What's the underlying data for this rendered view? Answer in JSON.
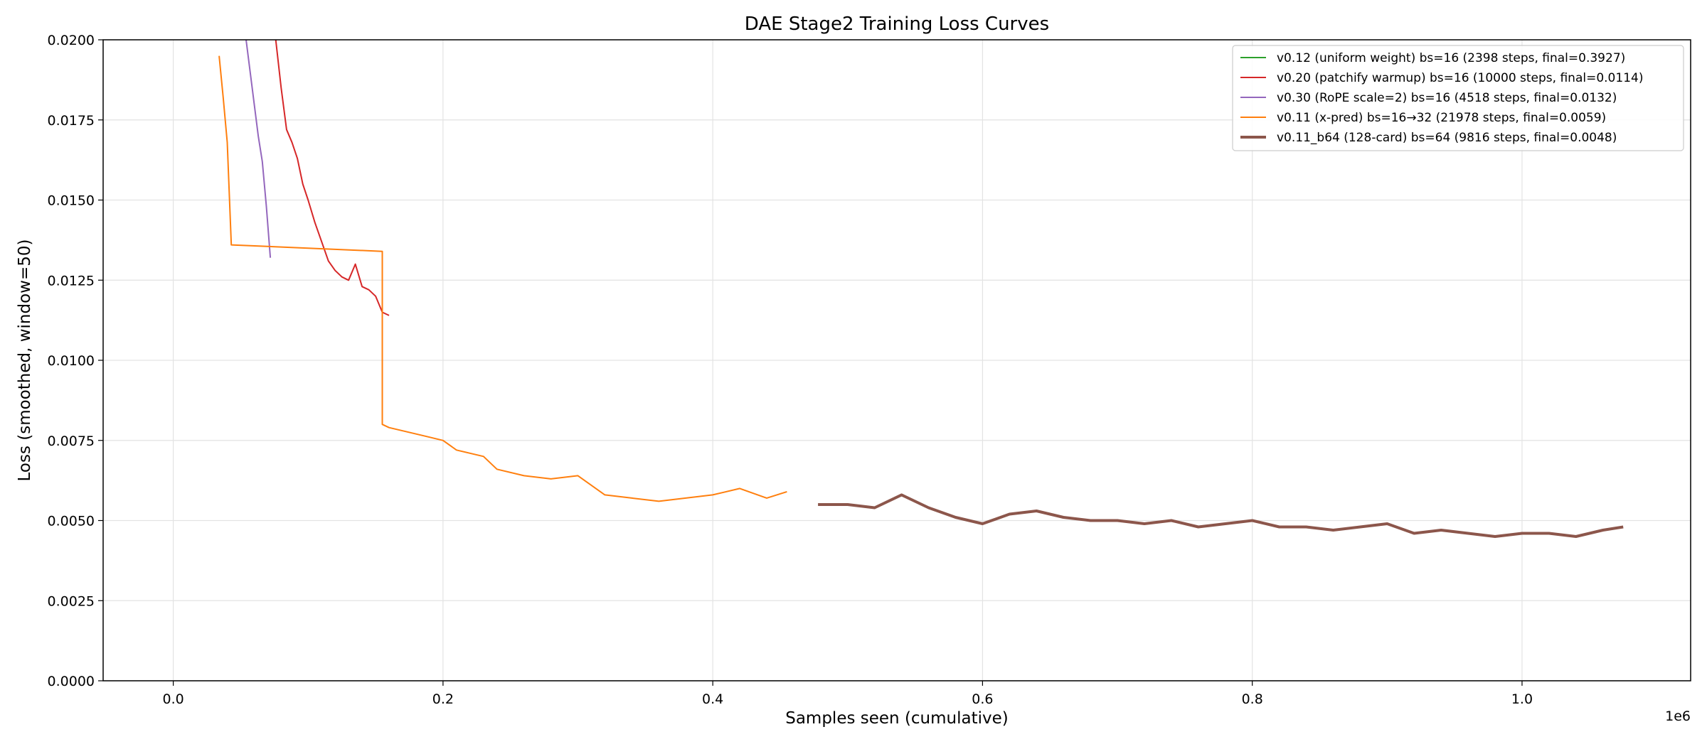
{
  "chart_data": {
    "type": "line",
    "title": "DAE Stage2 Training Loss Curves",
    "xlabel": "Samples seen (cumulative)",
    "ylabel": "Loss (smoothed, window=50)",
    "x_offset_text": "1e6",
    "xlim": [
      -52000,
      1125000
    ],
    "ylim": [
      0,
      0.02
    ],
    "x_ticks": [
      0,
      200000,
      400000,
      600000,
      800000,
      1000000
    ],
    "x_tick_labels": [
      "0.0",
      "0.2",
      "0.4",
      "0.6",
      "0.8",
      "1.0"
    ],
    "y_ticks": [
      0,
      0.0025,
      0.005,
      0.0075,
      0.01,
      0.0125,
      0.015,
      0.0175,
      0.02
    ],
    "y_tick_labels": [
      "0.0000",
      "0.0025",
      "0.0050",
      "0.0075",
      "0.0100",
      "0.0125",
      "0.0150",
      "0.0175",
      "0.0200"
    ],
    "grid": true,
    "legend_position": "top-right",
    "series": [
      {
        "name": "v0.12 (uniform weight) bs=16 (2398 steps, final=0.3927)",
        "color": "#2ca02c",
        "thick": false,
        "x": [],
        "y": []
      },
      {
        "name": "v0.20 (patchify warmup) bs=16 (10000 steps, final=0.0114)",
        "color": "#d62728",
        "thick": false,
        "x": [
          76000,
          80000,
          84000,
          88000,
          92000,
          96000,
          100000,
          105000,
          110000,
          115000,
          120000,
          125000,
          130000,
          135000,
          140000,
          145000,
          150000,
          155000,
          160000
        ],
        "y": [
          0.02,
          0.0185,
          0.0172,
          0.0168,
          0.0163,
          0.0155,
          0.015,
          0.0143,
          0.0137,
          0.0131,
          0.0128,
          0.0126,
          0.0125,
          0.013,
          0.0123,
          0.0122,
          0.012,
          0.0115,
          0.0114
        ]
      },
      {
        "name": "v0.30 (RoPE scale=2) bs=16 (4518 steps, final=0.0132)",
        "color": "#9467bd",
        "thick": false,
        "x": [
          54000,
          57000,
          60000,
          63000,
          66000,
          69000,
          72000
        ],
        "y": [
          0.02,
          0.019,
          0.018,
          0.017,
          0.0162,
          0.0148,
          0.0132
        ]
      },
      {
        "name": "v0.11 (x-pred) bs=16→32 (21978 steps, final=0.0059)",
        "color": "#ff7f0e",
        "thick": false,
        "x": [
          34000,
          37000,
          40000,
          43000,
          155000,
          155001,
          160000,
          170000,
          180000,
          190000,
          200000,
          210000,
          220000,
          230000,
          240000,
          260000,
          280000,
          300000,
          320000,
          340000,
          360000,
          380000,
          400000,
          420000,
          440000,
          455000
        ],
        "y": [
          0.0195,
          0.0182,
          0.0168,
          0.0136,
          0.0134,
          0.008,
          0.0079,
          0.0078,
          0.0077,
          0.0076,
          0.0075,
          0.0072,
          0.0071,
          0.007,
          0.0066,
          0.0064,
          0.0063,
          0.0064,
          0.0058,
          0.0057,
          0.0056,
          0.0057,
          0.0058,
          0.006,
          0.0057,
          0.0059
        ]
      },
      {
        "name": "v0.11_b64 (128-card) bs=64 (9816 steps, final=0.0048)",
        "color": "#8c564b",
        "thick": true,
        "x": [
          478000,
          500000,
          520000,
          540000,
          560000,
          580000,
          600000,
          620000,
          640000,
          660000,
          680000,
          700000,
          720000,
          740000,
          760000,
          780000,
          800000,
          820000,
          840000,
          860000,
          880000,
          900000,
          920000,
          940000,
          960000,
          980000,
          1000000,
          1020000,
          1040000,
          1060000,
          1075000
        ],
        "y": [
          0.0055,
          0.0055,
          0.0054,
          0.0058,
          0.0054,
          0.0051,
          0.0049,
          0.0052,
          0.0053,
          0.0051,
          0.005,
          0.005,
          0.0049,
          0.005,
          0.0048,
          0.0049,
          0.005,
          0.0048,
          0.0048,
          0.0047,
          0.0048,
          0.0049,
          0.0046,
          0.0047,
          0.0046,
          0.0045,
          0.0046,
          0.0046,
          0.0045,
          0.0047,
          0.0048
        ]
      }
    ]
  }
}
